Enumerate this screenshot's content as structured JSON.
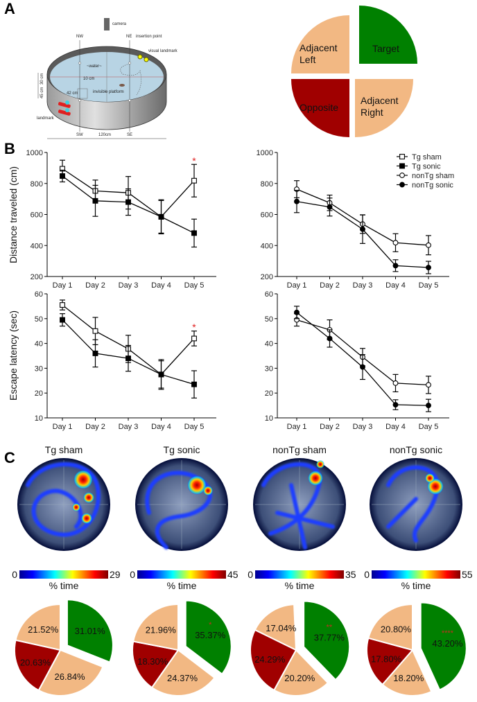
{
  "panels": {
    "a": "A",
    "b": "B",
    "c": "C"
  },
  "diagram": {
    "camera": "camera",
    "nw": "NW",
    "ne": "NE",
    "sw": "SW",
    "se": "SE",
    "insertion_point": "insertion point",
    "visual_landmark": "visual landmark",
    "water": "~water~",
    "ten_cm": "10 cm",
    "forty_two_cm": "42 cm",
    "platform": "invisible platform",
    "landmark": "landmark",
    "width": "120cm",
    "height_top": "30 cm",
    "height_bottom": "45 cm"
  },
  "quadrants": {
    "target": "Target",
    "adjacent_left": "Adjacent Left",
    "opposite": "Opposite",
    "adjacent_right": "Adjacent Right"
  },
  "colors": {
    "target": "#008000",
    "adjacent": "#f2b883",
    "opposite": "#a00000",
    "asterisk": "#e02020"
  },
  "chart_data": [
    {
      "type": "line",
      "title": "",
      "xlabel": "",
      "ylabel": "Distance traveled (cm)",
      "ylim": [
        200,
        1000
      ],
      "yticks": [
        "200",
        "400",
        "600",
        "800",
        "1000"
      ],
      "categories": [
        "Day 1",
        "Day 2",
        "Day 3",
        "Day 4",
        "Day 5"
      ],
      "series": [
        {
          "name": "Tg sham",
          "marker": "open-square",
          "values": [
            895,
            752,
            740,
            585,
            818
          ],
          "error": [
            55,
            70,
            105,
            110,
            105
          ]
        },
        {
          "name": "Tg sonic",
          "marker": "filled-square",
          "values": [
            848,
            688,
            680,
            585,
            480
          ],
          "error": [
            38,
            100,
            85,
            105,
            90
          ]
        }
      ],
      "annotations": [
        {
          "day": "Day 5",
          "text": "*",
          "y": 960
        }
      ]
    },
    {
      "type": "line",
      "title": "",
      "xlabel": "",
      "ylabel": "",
      "ylim": [
        200,
        1000
      ],
      "yticks": [
        "200",
        "400",
        "600",
        "800",
        "1000"
      ],
      "categories": [
        "Day 1",
        "Day 2",
        "Day 3",
        "Day 4",
        "Day 5"
      ],
      "series": [
        {
          "name": "nonTg sham",
          "marker": "open-circle",
          "values": [
            763,
            675,
            538,
            418,
            402
          ],
          "error": [
            55,
            50,
            60,
            58,
            62
          ]
        },
        {
          "name": "nonTg sonic",
          "marker": "filled-circle",
          "values": [
            684,
            648,
            505,
            270,
            258
          ],
          "error": [
            72,
            58,
            92,
            38,
            40
          ]
        }
      ],
      "annotations": [],
      "legend": {
        "position": "top-right",
        "entries": [
          {
            "name": "Tg sham",
            "marker": "open-square"
          },
          {
            "name": "Tg sonic",
            "marker": "filled-square"
          },
          {
            "name": "nonTg sham",
            "marker": "open-circle"
          },
          {
            "name": "nonTg sonic",
            "marker": "filled-circle"
          }
        ]
      }
    },
    {
      "type": "line",
      "title": "",
      "xlabel": "",
      "ylabel": "Escape latency (sec)",
      "ylim": [
        10,
        60
      ],
      "yticks": [
        "10",
        "20",
        "30",
        "40",
        "50",
        "60"
      ],
      "categories": [
        "Day 1",
        "Day 2",
        "Day 3",
        "Day 4",
        "Day 5"
      ],
      "series": [
        {
          "name": "Tg sham",
          "marker": "open-square",
          "values": [
            55.5,
            45,
            37.8,
            27.5,
            42
          ],
          "error": [
            2,
            5.5,
            5.5,
            6,
            3
          ]
        },
        {
          "name": "Tg sonic",
          "marker": "filled-square",
          "values": [
            49.5,
            36,
            34,
            27.5,
            23.5
          ],
          "error": [
            2.5,
            5.5,
            5.2,
            5.5,
            5.5
          ]
        }
      ],
      "annotations": [
        {
          "day": "Day 5",
          "text": "*",
          "y": 47.5
        }
      ]
    },
    {
      "type": "line",
      "title": "",
      "xlabel": "",
      "ylabel": "",
      "ylim": [
        10,
        60
      ],
      "yticks": [
        "10",
        "20",
        "30",
        "40",
        "50",
        "60"
      ],
      "categories": [
        "Day 1",
        "Day 2",
        "Day 3",
        "Day 4",
        "Day 5"
      ],
      "series": [
        {
          "name": "nonTg sham",
          "marker": "open-circle",
          "values": [
            49.5,
            45.5,
            34.5,
            24,
            23.3
          ],
          "error": [
            2.5,
            4,
            3.5,
            3.5,
            3.5
          ]
        },
        {
          "name": "nonTg sonic",
          "marker": "filled-circle",
          "values": [
            52.5,
            42,
            30.5,
            15.3,
            15
          ],
          "error": [
            2.5,
            3.5,
            5,
            2,
            2.5
          ]
        }
      ],
      "annotations": []
    },
    {
      "type": "pie",
      "title": "Tg sham",
      "colorbar": {
        "min": "0",
        "max": "29",
        "label": "% time"
      },
      "slices": [
        {
          "name": "Target",
          "value": 31.01,
          "label": "31.01%",
          "sig": ""
        },
        {
          "name": "Adjacent Right",
          "value": 26.84,
          "label": "26.84%"
        },
        {
          "name": "Opposite",
          "value": 20.63,
          "label": "20.63%"
        },
        {
          "name": "Adjacent Left",
          "value": 21.52,
          "label": "21.52%"
        }
      ]
    },
    {
      "type": "pie",
      "title": "Tg sonic",
      "colorbar": {
        "min": "0",
        "max": "45",
        "label": "% time"
      },
      "slices": [
        {
          "name": "Target",
          "value": 35.37,
          "label": "35.37%",
          "sig": "*"
        },
        {
          "name": "Adjacent Right",
          "value": 24.37,
          "label": "24.37%"
        },
        {
          "name": "Opposite",
          "value": 18.3,
          "label": "18.30%"
        },
        {
          "name": "Adjacent Left",
          "value": 21.96,
          "label": "21.96%"
        }
      ]
    },
    {
      "type": "pie",
      "title": "nonTg sham",
      "colorbar": {
        "min": "0",
        "max": "35",
        "label": "% time"
      },
      "slices": [
        {
          "name": "Target",
          "value": 37.77,
          "label": "37.77%",
          "sig": "**"
        },
        {
          "name": "Adjacent Right",
          "value": 20.2,
          "label": "20.20%"
        },
        {
          "name": "Opposite",
          "value": 24.29,
          "label": "24.29%"
        },
        {
          "name": "Adjacent Left",
          "value": 17.04,
          "label": "17.04%"
        }
      ]
    },
    {
      "type": "pie",
      "title": "nonTg sonic",
      "colorbar": {
        "min": "0",
        "max": "55",
        "label": "% time"
      },
      "slices": [
        {
          "name": "Target",
          "value": 43.2,
          "label": "43.20%",
          "sig": "****"
        },
        {
          "name": "Adjacent Right",
          "value": 18.2,
          "label": "18.20%"
        },
        {
          "name": "Opposite",
          "value": 17.8,
          "label": "17.80%"
        },
        {
          "name": "Adjacent Left",
          "value": 20.8,
          "label": "20.80%"
        }
      ]
    }
  ]
}
